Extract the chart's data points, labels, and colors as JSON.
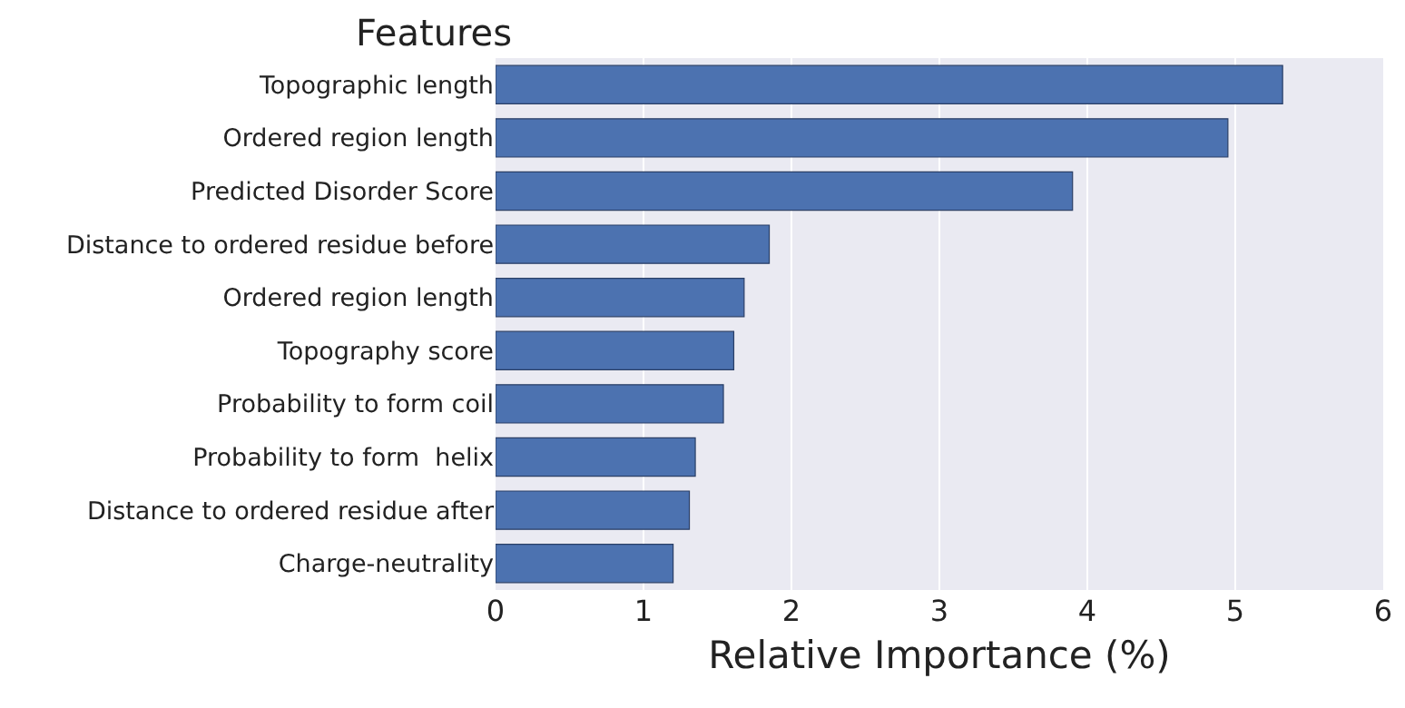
{
  "chart_data": {
    "type": "bar",
    "orientation": "horizontal",
    "ylabel": "Features",
    "xlabel": "Relative Importance (%)",
    "categories": [
      "Topographic length",
      "Ordered region length",
      "Predicted Disorder Score",
      "Distance to ordered residue before",
      "Ordered region length",
      "Topography score",
      "Probability to form coil",
      "Probability to form  helix",
      "Distance to ordered residue after",
      "Charge-neutrality"
    ],
    "values": [
      5.32,
      4.95,
      3.9,
      1.85,
      1.68,
      1.61,
      1.54,
      1.35,
      1.31,
      1.2
    ],
    "color": "#4c72b0",
    "xlim": [
      0,
      6
    ],
    "xticks": [
      0,
      1,
      2,
      3,
      4,
      5,
      6
    ],
    "grid": "x",
    "legend": false
  }
}
